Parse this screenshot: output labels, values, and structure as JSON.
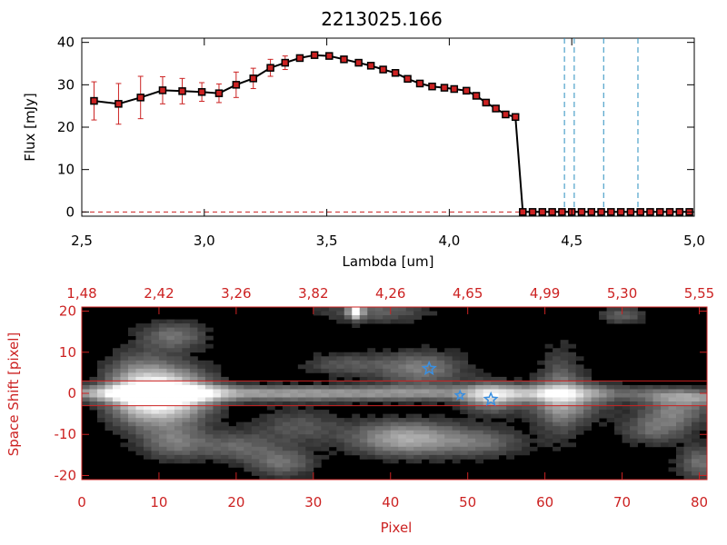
{
  "chart_data": [
    {
      "type": "line",
      "title": "2213025.166",
      "xlabel": "Lambda [um]",
      "ylabel": "Flux [mJy]",
      "xlim": [
        2.5,
        5.0
      ],
      "ylim": [
        -1,
        41
      ],
      "x_ticks": [
        "2.5",
        "3.0",
        "3.5",
        "4.0",
        "4.5",
        "5.0"
      ],
      "y_ticks": [
        "0",
        "10",
        "20",
        "30",
        "40"
      ],
      "series": [
        {
          "name": "flux",
          "color": "#000000",
          "marker_color": "#cc2222",
          "errorbar_color": "#cc2222",
          "x": [
            2.55,
            2.65,
            2.74,
            2.83,
            2.91,
            2.99,
            3.06,
            3.13,
            3.2,
            3.27,
            3.33,
            3.39,
            3.45,
            3.51,
            3.57,
            3.63,
            3.68,
            3.73,
            3.78,
            3.83,
            3.88,
            3.93,
            3.98,
            4.02,
            4.07,
            4.11,
            4.15,
            4.19,
            4.23,
            4.27,
            4.3,
            4.34,
            4.38,
            4.42,
            4.46,
            4.5,
            4.54,
            4.58,
            4.62,
            4.66,
            4.7,
            4.74,
            4.78,
            4.82,
            4.86,
            4.9,
            4.94,
            4.98
          ],
          "y": [
            26.2,
            25.5,
            27.0,
            28.7,
            28.5,
            28.3,
            28.0,
            30.0,
            31.5,
            34.0,
            35.2,
            36.3,
            37.0,
            36.8,
            36.0,
            35.2,
            34.5,
            33.6,
            32.8,
            31.4,
            30.3,
            29.6,
            29.3,
            29.0,
            28.6,
            27.4,
            25.8,
            24.4,
            23.0,
            22.4,
            0,
            0,
            0,
            0,
            0,
            0,
            0,
            0,
            0,
            0,
            0,
            0,
            0,
            0,
            0,
            0,
            0,
            0
          ],
          "err": [
            4.5,
            4.8,
            5.0,
            3.2,
            3.0,
            2.2,
            2.2,
            3.0,
            2.4,
            2.0,
            1.6,
            0,
            0,
            0,
            0,
            0,
            0,
            0,
            0,
            0,
            0,
            0,
            0,
            0,
            0,
            0,
            0,
            0,
            0,
            0,
            0,
            0,
            0,
            0,
            0,
            0,
            0,
            0,
            0,
            0,
            0,
            0,
            0,
            0,
            0,
            0,
            0,
            0
          ]
        }
      ],
      "vertical_lines": {
        "color": "#2a8fbf",
        "style": "dashed",
        "x": [
          4.47,
          4.51,
          4.63,
          4.77
        ]
      },
      "zero_line": {
        "color": "#cc2222",
        "style": "dashed",
        "y": 0
      }
    },
    {
      "type": "heatmap",
      "xlabel": "Pixel",
      "ylabel": "Space Shift [pixel]",
      "xlim": [
        0,
        81
      ],
      "ylim": [
        -21,
        21
      ],
      "x_ticks": [
        "0",
        "10",
        "20",
        "30",
        "40",
        "50",
        "60",
        "70",
        "80"
      ],
      "y_ticks": [
        "-20",
        "-10",
        "0",
        "10",
        "20"
      ],
      "top_axis_ticks": [
        "1.48",
        "2.42",
        "3.26",
        "3.82",
        "4.26",
        "4.65",
        "4.99",
        "5.30",
        "5.55"
      ],
      "axis_color": "#cc2222",
      "colormap": "grayscale",
      "trace": {
        "x": [
          0,
          10,
          20,
          30,
          40,
          50,
          60,
          70,
          81
        ],
        "y": [
          0,
          0,
          0,
          0,
          0,
          0,
          0,
          0,
          -1
        ],
        "intensity": [
          0.45,
          1.0,
          0.55,
          0.55,
          0.5,
          0.4,
          0.55,
          0.25,
          0.45
        ]
      },
      "blobs": [
        {
          "x": 11,
          "y": -0.5,
          "sx": 4,
          "sy": 4.5,
          "v": 1.0
        },
        {
          "x": 12,
          "y": 14,
          "sx": 3,
          "sy": 2.5,
          "v": 0.35
        },
        {
          "x": 12,
          "y": -12,
          "sx": 3,
          "sy": 3,
          "v": 0.35
        },
        {
          "x": 20,
          "y": -13,
          "sx": 3.5,
          "sy": 2.5,
          "v": 0.3
        },
        {
          "x": 26,
          "y": -17,
          "sx": 3,
          "sy": 2.5,
          "v": 0.35
        },
        {
          "x": 38,
          "y": 20,
          "sx": 5,
          "sy": 2,
          "v": 0.3
        },
        {
          "x": 42,
          "y": -11,
          "sx": 5,
          "sy": 3,
          "v": 0.6
        },
        {
          "x": 44,
          "y": 6,
          "sx": 4,
          "sy": 3,
          "v": 0.4
        },
        {
          "x": 53,
          "y": -1,
          "sx": 2.5,
          "sy": 2.5,
          "v": 0.55
        },
        {
          "x": 52,
          "y": -12,
          "sx": 4,
          "sy": 2.5,
          "v": 0.3
        },
        {
          "x": 63,
          "y": -2,
          "sx": 4,
          "sy": 3.5,
          "v": 0.35
        },
        {
          "x": 74,
          "y": -9,
          "sx": 3,
          "sy": 2.5,
          "v": 0.3
        },
        {
          "x": 77,
          "y": -4,
          "sx": 3,
          "sy": 3,
          "v": 0.4
        },
        {
          "x": 80,
          "y": -17,
          "sx": 2,
          "sy": 3,
          "v": 0.35
        },
        {
          "x": 70,
          "y": 19,
          "sx": 2,
          "sy": 1.5,
          "v": 0.3
        },
        {
          "x": 7,
          "y": 1,
          "sx": 3,
          "sy": 6,
          "v": 0.4
        },
        {
          "x": 62,
          "y": 0,
          "sx": 2,
          "sy": 8,
          "v": 0.3
        },
        {
          "x": 35.5,
          "y": 20,
          "sx": 0.6,
          "sy": 1.2,
          "v": 1.0
        },
        {
          "x": 34,
          "y": 7,
          "sx": 4,
          "sy": 2,
          "v": 0.25
        },
        {
          "x": 28,
          "y": -8,
          "sx": 4,
          "sy": 3,
          "v": 0.25
        }
      ],
      "extraction_lines": {
        "color": "#cc2222",
        "y": [
          3,
          -3
        ]
      },
      "stars": {
        "color": "#3a8fe0",
        "points": [
          {
            "x": 45,
            "y": 6,
            "size": 7
          },
          {
            "x": 49,
            "y": -0.5,
            "size": 5
          },
          {
            "x": 53,
            "y": -1.5,
            "size": 7
          }
        ]
      }
    }
  ]
}
